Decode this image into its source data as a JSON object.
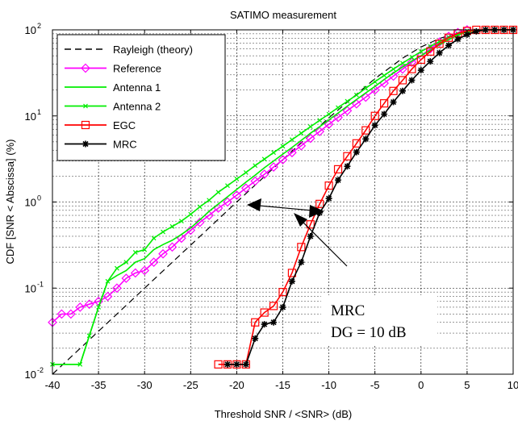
{
  "chart_data": {
    "type": "line",
    "title": "SATIMO measurement",
    "xlabel": "Threshold SNR / <SNR>  (dB)",
    "ylabel": "CDF [SNR < Abscissa]  (%)",
    "xlim": [
      -40,
      10
    ],
    "ylim": [
      0.01,
      100
    ],
    "yscale": "log",
    "grid": true,
    "legend_position": "top-left",
    "x_ticks": [
      -40,
      -35,
      -30,
      -25,
      -20,
      -15,
      -10,
      -5,
      0,
      5,
      10
    ],
    "x_tick_labels": [
      "-40",
      "-35",
      "-30",
      "-25",
      "-20",
      "-15",
      "-10",
      "-5",
      "0",
      "5",
      "10"
    ],
    "y_ticks": [
      0.01,
      0.1,
      1,
      10,
      100
    ],
    "y_tick_bases": [
      "10",
      "10",
      "10",
      "10",
      "10"
    ],
    "y_tick_exps": [
      "-2",
      "-1",
      "0",
      "1",
      "2"
    ],
    "series": [
      {
        "name": "Rayleigh (theory)",
        "color": "#000000",
        "dash": "8,5",
        "marker": "none",
        "x": [
          -40,
          -35,
          -30,
          -25,
          -20,
          -15,
          -10,
          -5,
          -2,
          0,
          2,
          4,
          6,
          10
        ],
        "y": [
          0.01,
          0.0316,
          0.1,
          0.316,
          1,
          3.11,
          9.5,
          27.1,
          46.9,
          63.2,
          79.4,
          91.9,
          98.1,
          100
        ]
      },
      {
        "name": "Reference",
        "color": "#ff00ff",
        "marker": "diamond",
        "x": [
          -40,
          -39,
          -38,
          -37,
          -36,
          -35,
          -34,
          -33,
          -32,
          -31,
          -30,
          -29,
          -28,
          -27,
          -26,
          -25,
          -24,
          -23,
          -22,
          -21,
          -20,
          -19,
          -18,
          -17,
          -16,
          -15,
          -14,
          -13,
          -12,
          -11,
          -10,
          -9,
          -8,
          -7,
          -6,
          -5,
          -4,
          -3,
          -2,
          -1,
          0,
          1,
          2,
          3,
          4,
          5
        ],
        "y": [
          0.04,
          0.05,
          0.05,
          0.06,
          0.065,
          0.07,
          0.08,
          0.1,
          0.13,
          0.15,
          0.16,
          0.2,
          0.25,
          0.3,
          0.38,
          0.47,
          0.58,
          0.7,
          0.85,
          1.0,
          1.2,
          1.45,
          1.75,
          2.1,
          2.55,
          3.1,
          3.75,
          4.5,
          5.5,
          6.6,
          8.0,
          9.6,
          11.5,
          13.8,
          16.5,
          20,
          24,
          29,
          35,
          42,
          50,
          60,
          72,
          84,
          93,
          100
        ]
      },
      {
        "name": "Antenna 1",
        "color": "#00ee00",
        "marker": "none",
        "x": [
          -40,
          -37,
          -36,
          -35,
          -34,
          -33,
          -32,
          -31,
          -30,
          -29,
          -28,
          -27,
          -26,
          -25,
          -24,
          -23,
          -22,
          -21,
          -20,
          -19,
          -18,
          -17,
          -16,
          -15,
          -14,
          -13,
          -12,
          -11,
          -10,
          -9,
          -8,
          -7,
          -6,
          -5,
          -4,
          -3,
          -2,
          -1,
          0,
          1,
          2,
          3,
          4,
          5,
          7,
          10
        ],
        "y": [
          0.013,
          0.013,
          0.028,
          0.06,
          0.12,
          0.14,
          0.16,
          0.2,
          0.22,
          0.28,
          0.32,
          0.36,
          0.42,
          0.5,
          0.62,
          0.78,
          0.95,
          1.15,
          1.4,
          1.7,
          2.05,
          2.5,
          3.0,
          3.6,
          4.3,
          5.2,
          6.3,
          7.5,
          9.0,
          10.8,
          13,
          15.5,
          18.5,
          22,
          26.5,
          31.5,
          37,
          43.5,
          50,
          58,
          67,
          77,
          87,
          95,
          100,
          100
        ]
      },
      {
        "name": "Antenna 2",
        "color": "#00ee00",
        "marker": "x",
        "x": [
          -40,
          -37,
          -36,
          -35,
          -34,
          -33,
          -32,
          -31,
          -30,
          -29,
          -28,
          -27,
          -26,
          -25,
          -24,
          -23,
          -22,
          -21,
          -20,
          -19,
          -18,
          -17,
          -16,
          -15,
          -14,
          -13,
          -12,
          -11,
          -10,
          -9,
          -8,
          -7,
          -6,
          -5,
          -4,
          -3,
          -2,
          -1,
          0,
          1,
          2,
          3,
          4,
          5,
          7,
          10
        ],
        "y": [
          0.013,
          0.013,
          0.028,
          0.06,
          0.12,
          0.17,
          0.2,
          0.26,
          0.28,
          0.38,
          0.45,
          0.52,
          0.6,
          0.72,
          0.88,
          1.05,
          1.3,
          1.55,
          1.85,
          2.2,
          2.65,
          3.15,
          3.75,
          4.45,
          5.3,
          6.3,
          7.5,
          8.9,
          10.5,
          12.5,
          14.8,
          17.5,
          21,
          25,
          29.5,
          35,
          41,
          48,
          56,
          64,
          73,
          82,
          90,
          97,
          100,
          100
        ]
      },
      {
        "name": "EGC",
        "color": "#ff0000",
        "marker": "square",
        "x": [
          -22,
          -21,
          -20,
          -19,
          -18,
          -17,
          -16,
          -15,
          -14,
          -13,
          -12,
          -11,
          -10,
          -9,
          -8,
          -7,
          -6,
          -5,
          -4,
          -3,
          -2,
          -1,
          0,
          1,
          2,
          3,
          4,
          5,
          6,
          7,
          8,
          9,
          10
        ],
        "y": [
          0.013,
          0.013,
          0.013,
          0.013,
          0.04,
          0.052,
          0.062,
          0.09,
          0.15,
          0.3,
          0.55,
          0.95,
          1.55,
          2.4,
          3.4,
          4.8,
          6.8,
          10,
          14,
          19.5,
          26,
          35,
          45,
          56,
          69,
          81,
          91,
          97,
          100,
          100,
          100,
          100,
          100
        ]
      },
      {
        "name": "MRC",
        "color": "#000000",
        "marker": "star",
        "x": [
          -21,
          -20,
          -19,
          -18,
          -17,
          -16,
          -15,
          -14,
          -13,
          -12,
          -11,
          -10,
          -9,
          -8,
          -7,
          -6,
          -5,
          -4,
          -3,
          -2,
          -1,
          0,
          1,
          2,
          3,
          4,
          5,
          6,
          7,
          8,
          9,
          10
        ],
        "y": [
          0.013,
          0.013,
          0.013,
          0.026,
          0.038,
          0.04,
          0.06,
          0.12,
          0.2,
          0.4,
          0.75,
          1.1,
          1.8,
          2.6,
          3.8,
          5.4,
          7.8,
          10.5,
          14.5,
          19.5,
          26,
          34,
          43,
          54,
          66,
          78,
          88,
          96,
          100,
          100,
          100,
          100
        ]
      }
    ],
    "annotations": [
      {
        "line1": "MRC",
        "line2": "DG  = 10 dB"
      }
    ]
  }
}
